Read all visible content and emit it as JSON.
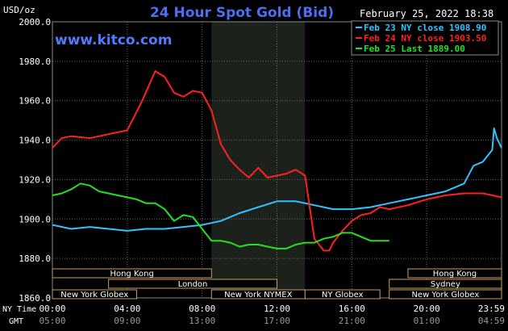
{
  "header": {
    "unit": "USD/oz",
    "title": "24 Hour Spot Gold (Bid)",
    "date": "February 25, 2022 18:38",
    "watermark": "www.kitco.com"
  },
  "legend": [
    {
      "label": "Feb 23 NY close 1908.90",
      "color": "#33c3ff"
    },
    {
      "label": "Feb 24 NY close 1903.50",
      "color": "#ff2020"
    },
    {
      "label": "Feb 25 Last 1889.00",
      "color": "#22e022"
    }
  ],
  "markets": [
    {
      "label": "Hong Kong",
      "start_h": 0,
      "end_h": 8.5,
      "row": 0
    },
    {
      "label": "Hong Kong",
      "start_h": 19,
      "end_h": 24,
      "row": 0
    },
    {
      "label": "London",
      "start_h": 3,
      "end_h": 12,
      "row": 1
    },
    {
      "label": "Sydney",
      "start_h": 18,
      "end_h": 24,
      "row": 1
    },
    {
      "label": "New York Globex",
      "start_h": 0,
      "end_h": 4.5,
      "row": 2
    },
    {
      "label": "New York NYMEX",
      "start_h": 8.5,
      "end_h": 13.5,
      "row": 2
    },
    {
      "label": "NY Globex",
      "start_h": 13.5,
      "end_h": 17.5,
      "row": 2
    },
    {
      "label": "New York Globex",
      "start_h": 18,
      "end_h": 24,
      "row": 2
    }
  ],
  "time_axis": {
    "row1_label": "NY Time",
    "row2_label": "GMT",
    "ny": [
      "00:00",
      "04:00",
      "08:00",
      "12:00",
      "16:00",
      "20:00",
      "23:59"
    ],
    "gmt": [
      "05:00",
      "09:00",
      "13:00",
      "17:00",
      "21:00",
      "01:00",
      "04:59"
    ]
  },
  "chart_data": {
    "type": "line",
    "title": "24 Hour Spot Gold (Bid)",
    "ylabel": "USD/oz",
    "xlabel": "NY Time",
    "ylim": [
      1860,
      2000
    ],
    "xlim": [
      0,
      24
    ],
    "yticks": [
      "2000.0",
      "1980.0",
      "1960.0",
      "1940.0",
      "1920.0",
      "1900.0",
      "1880.0",
      "1860.0"
    ],
    "shaded_region_h": [
      8.5,
      13.5
    ],
    "series": [
      {
        "name": "Feb 23 NY close 1908.90",
        "color": "#33c3ff",
        "x": [
          0,
          1,
          2,
          3,
          4,
          5,
          6,
          7,
          8,
          9,
          10,
          11,
          12,
          13,
          14,
          15,
          16,
          17,
          18,
          19,
          20,
          21,
          22,
          22.5,
          23,
          23.5,
          23.6,
          23.75,
          24
        ],
        "y": [
          1897,
          1895,
          1896,
          1895,
          1894,
          1895,
          1895,
          1896,
          1897,
          1899,
          1903,
          1906,
          1909,
          1909,
          1907,
          1905,
          1905,
          1906,
          1908,
          1910,
          1912,
          1914,
          1918,
          1927,
          1929,
          1935,
          1946,
          1941,
          1936
        ]
      },
      {
        "name": "Feb 24 NY close 1903.50",
        "color": "#ff2020",
        "x": [
          0,
          0.5,
          1,
          2,
          3,
          4,
          4.8,
          5.5,
          6,
          6.5,
          7,
          7.5,
          8,
          8.5,
          9,
          9.5,
          10,
          10.5,
          11,
          11.5,
          12,
          12.5,
          13,
          13.5,
          14,
          14.5,
          14.8,
          15,
          15.5,
          16,
          16.5,
          17,
          17.5,
          18,
          19,
          20,
          21,
          22,
          23,
          24
        ],
        "y": [
          1936,
          1941,
          1942,
          1941,
          1943,
          1945,
          1960,
          1975,
          1972,
          1964,
          1962,
          1965,
          1964,
          1955,
          1938,
          1930,
          1925,
          1921,
          1926,
          1921,
          1922,
          1923,
          1925,
          1922,
          1890,
          1884,
          1884,
          1888,
          1894,
          1899,
          1902,
          1903,
          1906,
          1905,
          1907,
          1910,
          1912,
          1913,
          1913,
          1911
        ]
      },
      {
        "name": "Feb 25 Last 1889.00",
        "color": "#22e022",
        "x": [
          0,
          0.5,
          1,
          1.5,
          2,
          2.5,
          3,
          3.5,
          4,
          4.5,
          5,
          5.5,
          6,
          6.5,
          7,
          7.5,
          8,
          8.5,
          9,
          9.5,
          10,
          10.5,
          11,
          11.5,
          12,
          12.5,
          13,
          13.5,
          14,
          14.5,
          15,
          15.5,
          16,
          16.5,
          17,
          17.5,
          18
        ],
        "y": [
          1912,
          1913,
          1915,
          1918,
          1917,
          1914,
          1913,
          1912,
          1911,
          1910,
          1908,
          1908,
          1905,
          1899,
          1902,
          1901,
          1895,
          1889,
          1889,
          1888,
          1886,
          1887,
          1887,
          1886,
          1885,
          1885,
          1887,
          1888,
          1888,
          1890,
          1891,
          1893,
          1893,
          1891,
          1889,
          1889,
          1889
        ]
      }
    ]
  }
}
